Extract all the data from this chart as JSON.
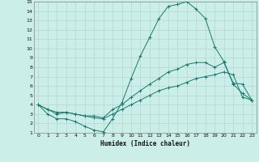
{
  "xlabel": "Humidex (Indice chaleur)",
  "bg_color": "#cceee8",
  "line_color": "#1a7870",
  "grid_color": "#b0d8d0",
  "xlim": [
    -0.5,
    23.5
  ],
  "ylim": [
    1,
    15
  ],
  "xticks": [
    0,
    1,
    2,
    3,
    4,
    5,
    6,
    7,
    8,
    9,
    10,
    11,
    12,
    13,
    14,
    15,
    16,
    17,
    18,
    19,
    20,
    21,
    22,
    23
  ],
  "yticks": [
    1,
    2,
    3,
    4,
    5,
    6,
    7,
    8,
    9,
    10,
    11,
    12,
    13,
    14,
    15
  ],
  "line1_x": [
    0,
    1,
    2,
    3,
    4,
    5,
    6,
    7,
    8,
    9,
    10,
    11,
    12,
    13,
    14,
    15,
    16,
    17,
    18,
    19,
    20,
    21,
    22,
    23
  ],
  "line1_y": [
    4,
    3,
    2.5,
    2.5,
    2.2,
    1.7,
    1.3,
    1.1,
    2.5,
    4.2,
    6.8,
    9.2,
    11.2,
    13.2,
    14.5,
    14.7,
    15.0,
    14.2,
    13.2,
    10.2,
    8.6,
    6.2,
    5.2,
    4.5
  ],
  "line2_x": [
    0,
    1,
    2,
    3,
    4,
    5,
    6,
    7,
    8,
    9,
    10,
    11,
    12,
    13,
    14,
    15,
    16,
    17,
    18,
    19,
    20,
    21,
    22,
    23
  ],
  "line2_y": [
    4,
    3.5,
    3.0,
    3.2,
    3.0,
    2.8,
    2.8,
    2.6,
    3.5,
    4.0,
    4.8,
    5.5,
    6.2,
    6.8,
    7.5,
    7.8,
    8.3,
    8.5,
    8.5,
    8.0,
    8.5,
    6.3,
    6.2,
    4.5
  ],
  "line3_x": [
    0,
    1,
    2,
    3,
    4,
    5,
    6,
    7,
    8,
    9,
    10,
    11,
    12,
    13,
    14,
    15,
    16,
    17,
    18,
    19,
    20,
    21,
    22,
    23
  ],
  "line3_y": [
    4,
    3.5,
    3.2,
    3.2,
    3.0,
    2.8,
    2.6,
    2.5,
    3.0,
    3.5,
    4.0,
    4.5,
    5.0,
    5.5,
    5.8,
    6.0,
    6.4,
    6.8,
    7.0,
    7.2,
    7.5,
    7.2,
    4.8,
    4.5
  ]
}
